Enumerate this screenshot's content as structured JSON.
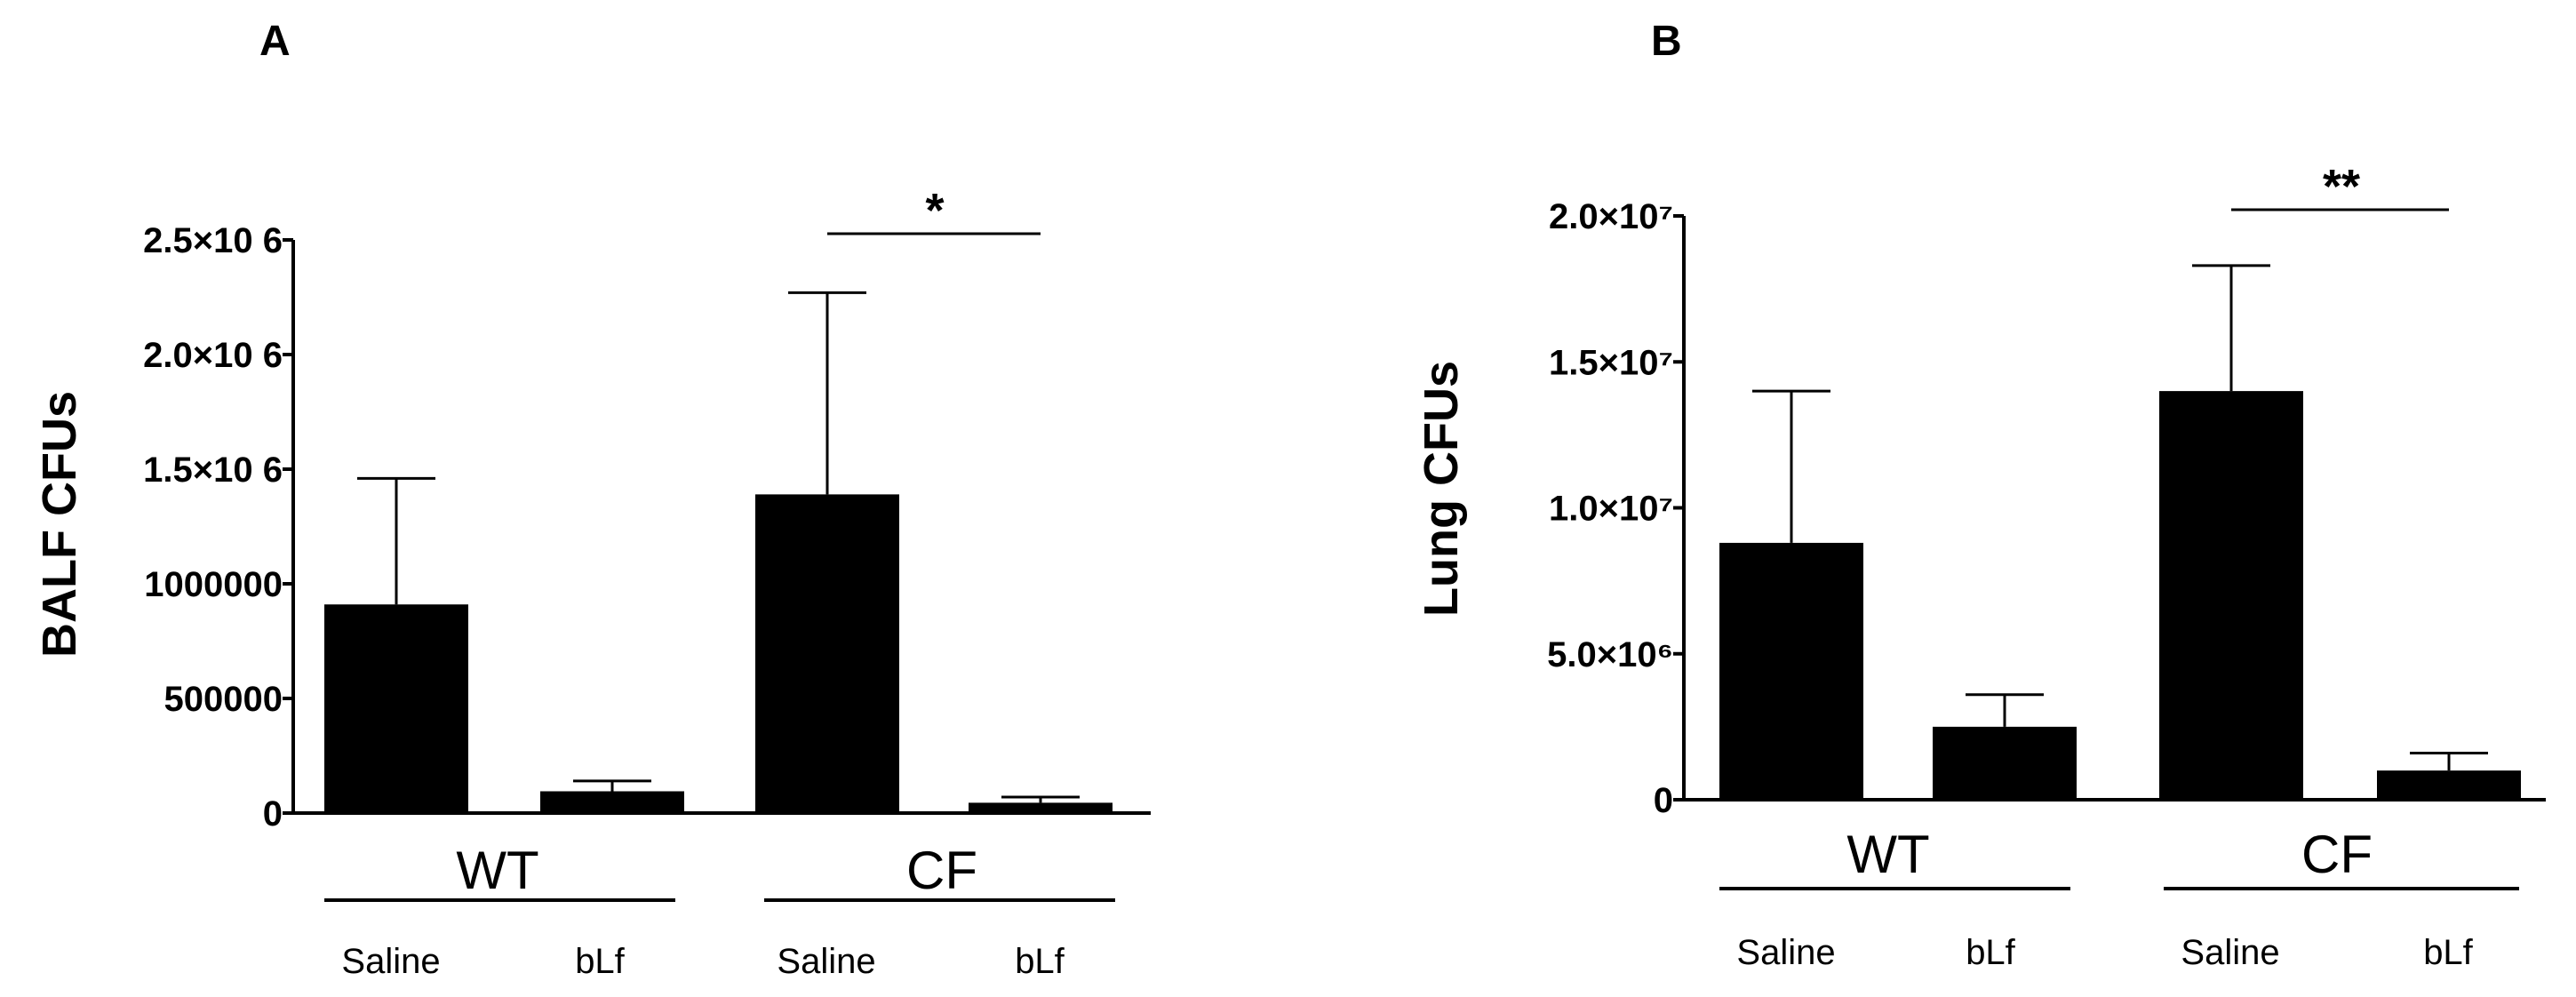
{
  "chart_data": [
    {
      "type": "bar",
      "panel": "A",
      "ylabel": "BALF CFUs",
      "ylim": [
        0,
        2500000
      ],
      "ytick_labels": [
        "0",
        "500000",
        "1000000",
        "1.5×10 6",
        "2.0×10 6",
        "2.5×10 6"
      ],
      "ytick_values": [
        0,
        500000,
        1000000,
        1500000,
        2000000,
        2500000
      ],
      "groups": [
        "WT",
        "CF"
      ],
      "categories": [
        "Saline",
        "bLf",
        "Saline",
        "bLf"
      ],
      "values": [
        910000,
        95000,
        1390000,
        45000
      ],
      "errors": [
        550000,
        45000,
        880000,
        25000
      ],
      "bar_color": "#000000",
      "significance": {
        "between": [
          2,
          3
        ],
        "label": "*"
      }
    },
    {
      "type": "bar",
      "panel": "B",
      "ylabel": "Lung CFUs",
      "ylim": [
        0,
        20000000
      ],
      "ytick_labels": [
        "0",
        "5.0×10⁶",
        "1.0×10⁷",
        "1.5×10⁷",
        "2.0×10⁷"
      ],
      "ytick_values": [
        0,
        5000000,
        10000000,
        15000000,
        20000000
      ],
      "groups": [
        "WT",
        "CF"
      ],
      "categories": [
        "Saline",
        "bLf",
        "Saline",
        "bLf"
      ],
      "values": [
        8800000,
        2500000,
        14000000,
        1000000
      ],
      "errors": [
        5200000,
        1100000,
        4300000,
        600000
      ],
      "bar_color": "#000000",
      "significance": {
        "between": [
          2,
          3
        ],
        "label": "**"
      }
    }
  ]
}
